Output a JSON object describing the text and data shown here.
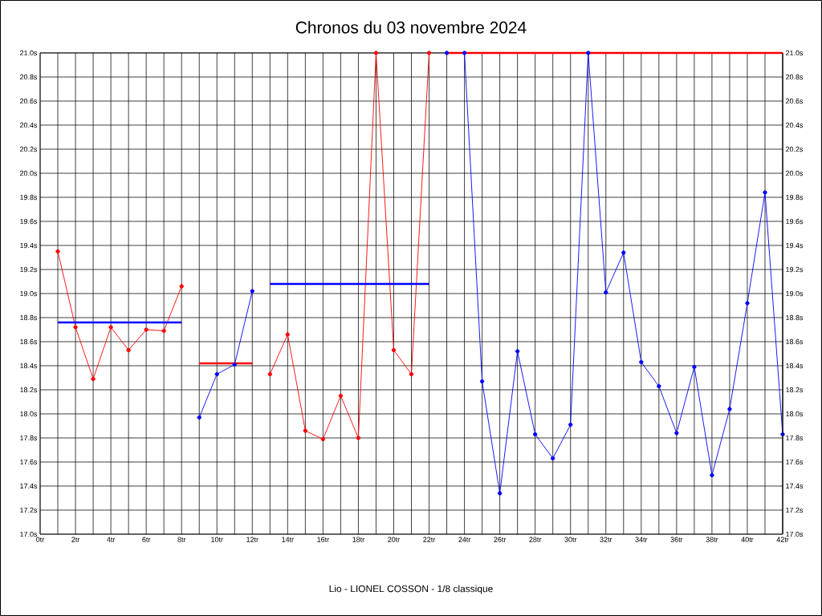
{
  "chart_data": {
    "type": "line",
    "title": "Chronos du 03 novembre 2024",
    "xlabel": "Lio - LIONEL COSSON - 1/8 classique",
    "x": [
      1,
      2,
      3,
      4,
      5,
      6,
      7,
      8,
      9,
      10,
      11,
      12,
      13,
      14,
      15,
      16,
      17,
      18,
      19,
      20,
      21,
      22,
      23,
      24,
      25,
      26,
      27,
      28,
      29,
      30,
      31,
      32,
      33,
      34,
      35,
      36,
      37,
      38,
      39,
      40,
      41,
      42
    ],
    "series": [
      {
        "color": "#ff0000",
        "marker": "circle",
        "values": [
          19.35,
          18.72,
          18.29,
          18.72,
          18.53,
          18.7,
          18.69,
          19.06,
          null,
          null,
          null,
          null,
          18.33,
          18.66,
          17.86,
          17.79,
          18.15,
          17.8,
          21.0,
          18.53,
          18.33,
          21.0,
          null,
          null,
          null,
          null,
          null,
          null,
          null,
          null,
          null,
          null,
          null,
          null,
          null,
          null,
          null,
          null,
          null,
          null,
          null,
          null
        ]
      },
      {
        "color": "#0000ff",
        "marker": "circle",
        "values": [
          null,
          null,
          null,
          null,
          null,
          null,
          null,
          null,
          17.97,
          18.33,
          18.41,
          19.02,
          null,
          null,
          null,
          null,
          null,
          null,
          null,
          null,
          null,
          null,
          21.0,
          21.0,
          18.27,
          17.34,
          18.52,
          17.83,
          17.63,
          17.91,
          21.0,
          19.01,
          19.34,
          18.43,
          18.23,
          17.84,
          18.39,
          17.49,
          18.04,
          18.92,
          19.84,
          17.83
        ]
      },
      {
        "color": "#0000ff",
        "marker": "none",
        "x": [
          1,
          8
        ],
        "values": [
          18.76,
          18.76
        ]
      },
      {
        "color": "#ff0000",
        "marker": "none",
        "x": [
          9,
          12
        ],
        "values": [
          18.42,
          18.42
        ]
      },
      {
        "color": "#0000ff",
        "marker": "none",
        "x": [
          13,
          22
        ],
        "values": [
          19.08,
          19.08
        ]
      },
      {
        "color": "#ff0000",
        "marker": "none",
        "x": [
          23,
          42
        ],
        "values": [
          21.0,
          21.0
        ]
      }
    ],
    "xlim": [
      0,
      42
    ],
    "xticks": [
      {
        "value": 0,
        "label": "0tr"
      },
      {
        "value": 1,
        "label": null
      },
      {
        "value": 2,
        "label": "2tr"
      },
      {
        "value": 3,
        "label": null
      },
      {
        "value": 4,
        "label": "4tr"
      },
      {
        "value": 5,
        "label": null
      },
      {
        "value": 6,
        "label": "6tr"
      },
      {
        "value": 7,
        "label": null
      },
      {
        "value": 8,
        "label": "8tr"
      },
      {
        "value": 9,
        "label": null
      },
      {
        "value": 10,
        "label": "10tr"
      },
      {
        "value": 11,
        "label": null
      },
      {
        "value": 12,
        "label": "12tr"
      },
      {
        "value": 13,
        "label": null
      },
      {
        "value": 14,
        "label": "14tr"
      },
      {
        "value": 15,
        "label": null
      },
      {
        "value": 16,
        "label": "16tr"
      },
      {
        "value": 17,
        "label": null
      },
      {
        "value": 18,
        "label": "18tr"
      },
      {
        "value": 19,
        "label": null
      },
      {
        "value": 20,
        "label": "20tr"
      },
      {
        "value": 21,
        "label": null
      },
      {
        "value": 22,
        "label": "22tr"
      },
      {
        "value": 23,
        "label": null
      },
      {
        "value": 24,
        "label": "24tr"
      },
      {
        "value": 25,
        "label": null
      },
      {
        "value": 26,
        "label": "26tr"
      },
      {
        "value": 27,
        "label": null
      },
      {
        "value": 28,
        "label": "28tr"
      },
      {
        "value": 29,
        "label": null
      },
      {
        "value": 30,
        "label": "30tr"
      },
      {
        "value": 31,
        "label": null
      },
      {
        "value": 32,
        "label": "32tr"
      },
      {
        "value": 33,
        "label": null
      },
      {
        "value": 34,
        "label": "34tr"
      },
      {
        "value": 35,
        "label": null
      },
      {
        "value": 36,
        "label": "36tr"
      },
      {
        "value": 37,
        "label": null
      },
      {
        "value": 38,
        "label": "38tr"
      },
      {
        "value": 39,
        "label": null
      },
      {
        "value": 40,
        "label": "40tr"
      },
      {
        "value": 41,
        "label": null
      },
      {
        "value": 42,
        "label": "42tr"
      }
    ],
    "ylim": [
      17.0,
      21.0
    ],
    "yticks": [
      {
        "value": 17.0,
        "label": "17.0s"
      },
      {
        "value": 17.2,
        "label": "17.2s"
      },
      {
        "value": 17.4,
        "label": "17.4s"
      },
      {
        "value": 17.6,
        "label": "17.6s"
      },
      {
        "value": 17.8,
        "label": "17.8s"
      },
      {
        "value": 18.0,
        "label": "18.0s"
      },
      {
        "value": 18.2,
        "label": "18.2s"
      },
      {
        "value": 18.4,
        "label": "18.4s"
      },
      {
        "value": 18.6,
        "label": "18.6s"
      },
      {
        "value": 18.8,
        "label": "18.8s"
      },
      {
        "value": 19.0,
        "label": "19.0s"
      },
      {
        "value": 19.2,
        "label": "19.2s"
      },
      {
        "value": 19.4,
        "label": "19.4s"
      },
      {
        "value": 19.6,
        "label": "19.6s"
      },
      {
        "value": 19.8,
        "label": "19.8s"
      },
      {
        "value": 20.0,
        "label": "20.0s"
      },
      {
        "value": 20.2,
        "label": "20.2s"
      },
      {
        "value": 20.4,
        "label": "20.4s"
      },
      {
        "value": 20.6,
        "label": "20.6s"
      },
      {
        "value": 20.8,
        "label": "20.8s"
      },
      {
        "value": 21.0,
        "label": "21.0s"
      }
    ],
    "y2lim": [
      17.0,
      21.0
    ],
    "y2ticks": [
      {
        "value": 17.0,
        "label": "17.0s"
      },
      {
        "value": 17.2,
        "label": "17.2s"
      },
      {
        "value": 17.4,
        "label": "17.4s"
      },
      {
        "value": 17.6,
        "label": "17.6s"
      },
      {
        "value": 17.8,
        "label": "17.8s"
      },
      {
        "value": 18.0,
        "label": "18.0s"
      },
      {
        "value": 18.2,
        "label": "18.2s"
      },
      {
        "value": 18.4,
        "label": "18.4s"
      },
      {
        "value": 18.6,
        "label": "18.6s"
      },
      {
        "value": 18.8,
        "label": "18.8s"
      },
      {
        "value": 19.0,
        "label": "19.0s"
      },
      {
        "value": 19.2,
        "label": "19.2s"
      },
      {
        "value": 19.4,
        "label": "19.4s"
      },
      {
        "value": 19.6,
        "label": "19.6s"
      },
      {
        "value": 19.8,
        "label": "19.8s"
      },
      {
        "value": 20.0,
        "label": "20.0s"
      },
      {
        "value": 20.2,
        "label": "20.2s"
      },
      {
        "value": 20.4,
        "label": "20.4s"
      },
      {
        "value": 20.6,
        "label": "20.6s"
      },
      {
        "value": 20.8,
        "label": "20.8s"
      },
      {
        "value": 21.0,
        "label": "21.0s"
      }
    ],
    "grid": true,
    "line_style": "solid"
  }
}
